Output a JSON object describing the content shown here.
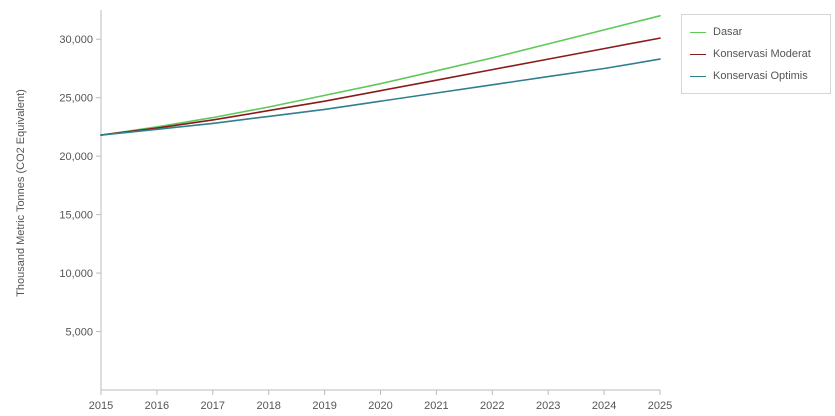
{
  "chart_data": {
    "type": "line",
    "title": "",
    "xlabel": "",
    "ylabel": "Thousand Metric Tonnes (CO2 Equivalent)",
    "x": [
      2015,
      2016,
      2017,
      2018,
      2019,
      2020,
      2021,
      2022,
      2023,
      2024,
      2025
    ],
    "xlim": [
      2015,
      2025
    ],
    "ylim": [
      0,
      32500
    ],
    "yticks": [
      5000,
      10000,
      15000,
      20000,
      25000,
      30000
    ],
    "ytick_labels": [
      "5,000",
      "10,000",
      "15,000",
      "20,000",
      "25,000",
      "30,000"
    ],
    "xtick_labels": [
      "2015",
      "2016",
      "2017",
      "2018",
      "2019",
      "2020",
      "2021",
      "2022",
      "2023",
      "2024",
      "2025"
    ],
    "grid": false,
    "legend_position": "top-right",
    "series": [
      {
        "name": "Dasar",
        "color": "#5ec95a",
        "values": [
          21800,
          22500,
          23300,
          24200,
          25200,
          26200,
          27300,
          28400,
          29600,
          30800,
          32000
        ]
      },
      {
        "name": "Konservasi Moderat",
        "color": "#8b1a1a",
        "values": [
          21800,
          22400,
          23100,
          23900,
          24700,
          25600,
          26500,
          27400,
          28300,
          29200,
          30100
        ]
      },
      {
        "name": "Konservasi Optimis",
        "color": "#2f7f8f",
        "values": [
          21800,
          22300,
          22800,
          23400,
          24000,
          24700,
          25400,
          26100,
          26800,
          27500,
          28300
        ]
      }
    ]
  }
}
